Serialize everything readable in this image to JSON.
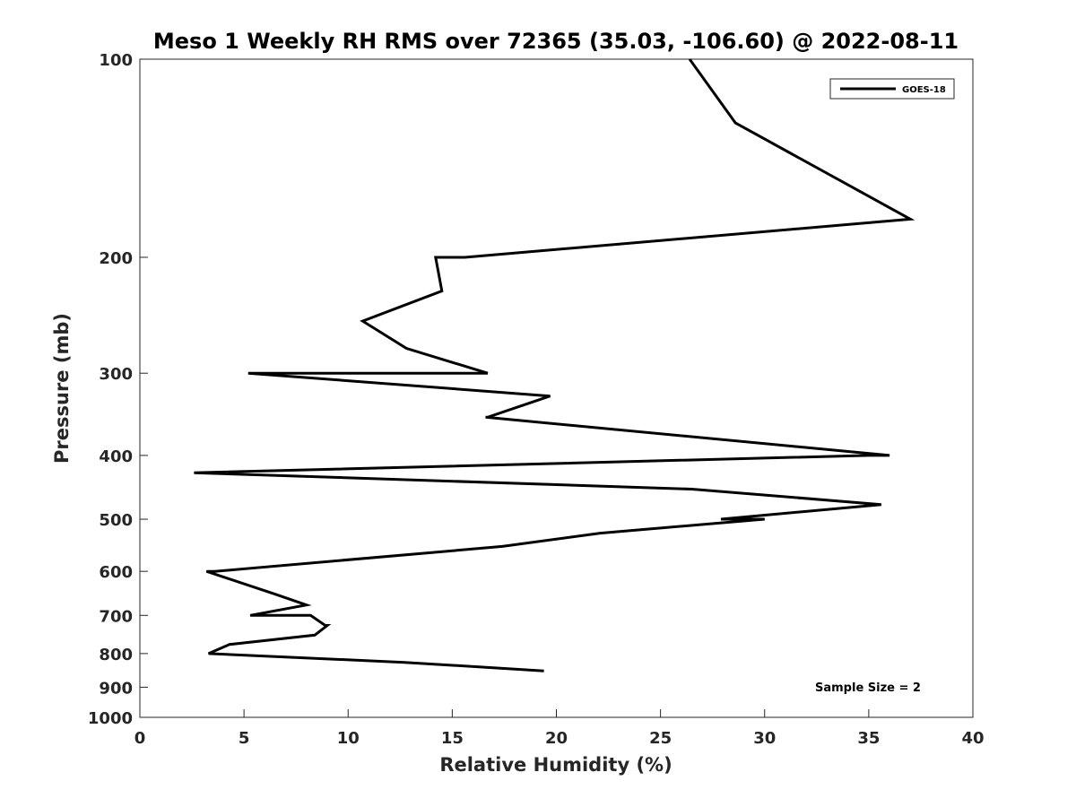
{
  "chart_data": {
    "type": "line",
    "title": "Meso 1 Weekly RH RMS over 72365 (35.03, -106.60) @ 2022-08-11",
    "xlabel": "Relative Humidity (%)",
    "ylabel": "Pressure (mb)",
    "xlim": [
      0,
      40
    ],
    "ylim": [
      100,
      1000
    ],
    "yscale": "log",
    "y_reversed": true,
    "xticks": [
      0,
      5,
      10,
      15,
      20,
      25,
      30,
      35,
      40
    ],
    "yticks": [
      100,
      200,
      300,
      400,
      500,
      600,
      700,
      800,
      900,
      1000
    ],
    "grid": false,
    "legend_location": "top-right",
    "series": [
      {
        "name": "GOES-18",
        "color": "#000000",
        "points": [
          {
            "x": 26.4,
            "y": 100
          },
          {
            "x": 28.6,
            "y": 125
          },
          {
            "x": 37.0,
            "y": 175
          },
          {
            "x": 15.6,
            "y": 200
          },
          {
            "x": 14.2,
            "y": 200
          },
          {
            "x": 14.5,
            "y": 225
          },
          {
            "x": 10.7,
            "y": 250
          },
          {
            "x": 12.8,
            "y": 275
          },
          {
            "x": 16.7,
            "y": 300
          },
          {
            "x": 5.2,
            "y": 300
          },
          {
            "x": 19.7,
            "y": 325
          },
          {
            "x": 16.7,
            "y": 350
          },
          {
            "x": 16.6,
            "y": 350
          },
          {
            "x": 36.0,
            "y": 400
          },
          {
            "x": 35.0,
            "y": 400
          },
          {
            "x": 2.6,
            "y": 425
          },
          {
            "x": 26.5,
            "y": 450
          },
          {
            "x": 35.6,
            "y": 475
          },
          {
            "x": 27.9,
            "y": 500
          },
          {
            "x": 30.0,
            "y": 500
          },
          {
            "x": 22.1,
            "y": 525
          },
          {
            "x": 17.4,
            "y": 550
          },
          {
            "x": 3.6,
            "y": 600
          },
          {
            "x": 3.2,
            "y": 600
          },
          {
            "x": 6.5,
            "y": 650
          },
          {
            "x": 8.0,
            "y": 675
          },
          {
            "x": 5.3,
            "y": 700
          },
          {
            "x": 8.2,
            "y": 700
          },
          {
            "x": 8.9,
            "y": 725
          },
          {
            "x": 9.0,
            "y": 725
          },
          {
            "x": 8.4,
            "y": 750
          },
          {
            "x": 4.3,
            "y": 775
          },
          {
            "x": 3.3,
            "y": 800
          },
          {
            "x": 12.7,
            "y": 825
          },
          {
            "x": 19.4,
            "y": 850
          }
        ]
      }
    ],
    "annotations": [
      "Sample Size = 2"
    ]
  }
}
